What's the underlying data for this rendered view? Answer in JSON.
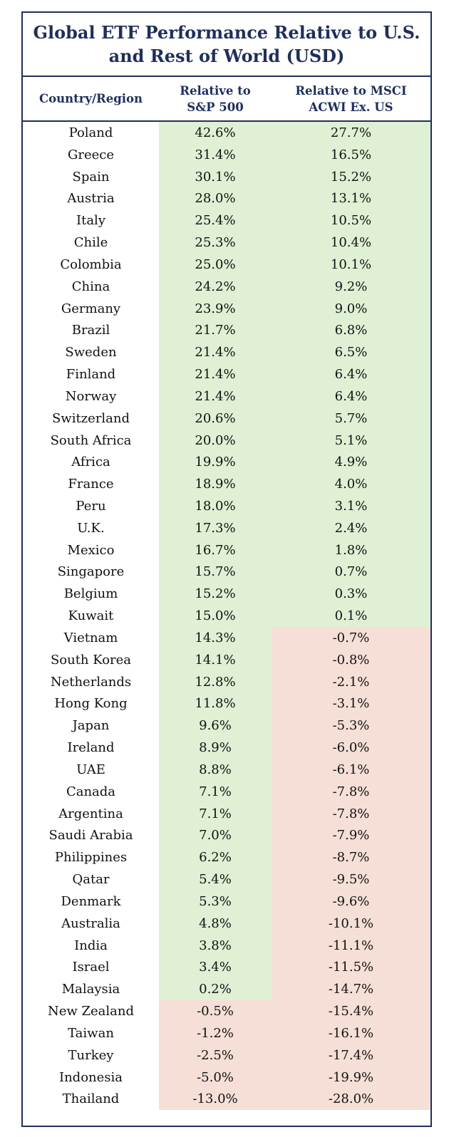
{
  "chart_data": {
    "type": "table",
    "title": "Global ETF Performance Relative to U.S. and Rest of World (USD)",
    "columns": [
      "Country/Region",
      "Relative to\nS&P 500",
      "Relative to MSCI\nACWI Ex. US"
    ],
    "rows": [
      [
        "Poland",
        "42.6%",
        "27.7%"
      ],
      [
        "Greece",
        "31.4%",
        "16.5%"
      ],
      [
        "Spain",
        "30.1%",
        "15.2%"
      ],
      [
        "Austria",
        "28.0%",
        "13.1%"
      ],
      [
        "Italy",
        "25.4%",
        "10.5%"
      ],
      [
        "Chile",
        "25.3%",
        "10.4%"
      ],
      [
        "Colombia",
        "25.0%",
        "10.1%"
      ],
      [
        "China",
        "24.2%",
        "9.2%"
      ],
      [
        "Germany",
        "23.9%",
        "9.0%"
      ],
      [
        "Brazil",
        "21.7%",
        "6.8%"
      ],
      [
        "Sweden",
        "21.4%",
        "6.5%"
      ],
      [
        "Finland",
        "21.4%",
        "6.4%"
      ],
      [
        "Norway",
        "21.4%",
        "6.4%"
      ],
      [
        "Switzerland",
        "20.6%",
        "5.7%"
      ],
      [
        "South Africa",
        "20.0%",
        "5.1%"
      ],
      [
        "Africa",
        "19.9%",
        "4.9%"
      ],
      [
        "France",
        "18.9%",
        "4.0%"
      ],
      [
        "Peru",
        "18.0%",
        "3.1%"
      ],
      [
        "U.K.",
        "17.3%",
        "2.4%"
      ],
      [
        "Mexico",
        "16.7%",
        "1.8%"
      ],
      [
        "Singapore",
        "15.7%",
        "0.7%"
      ],
      [
        "Belgium",
        "15.2%",
        "0.3%"
      ],
      [
        "Kuwait",
        "15.0%",
        "0.1%"
      ],
      [
        "Vietnam",
        "14.3%",
        "-0.7%"
      ],
      [
        "South Korea",
        "14.1%",
        "-0.8%"
      ],
      [
        "Netherlands",
        "12.8%",
        "-2.1%"
      ],
      [
        "Hong Kong",
        "11.8%",
        "-3.1%"
      ],
      [
        "Japan",
        "9.6%",
        "-5.3%"
      ],
      [
        "Ireland",
        "8.9%",
        "-6.0%"
      ],
      [
        "UAE",
        "8.8%",
        "-6.1%"
      ],
      [
        "Canada",
        "7.1%",
        "-7.8%"
      ],
      [
        "Argentina",
        "7.1%",
        "-7.8%"
      ],
      [
        "Saudi Arabia",
        "7.0%",
        "-7.9%"
      ],
      [
        "Philippines",
        "6.2%",
        "-8.7%"
      ],
      [
        "Qatar",
        "5.4%",
        "-9.5%"
      ],
      [
        "Denmark",
        "5.3%",
        "-9.6%"
      ],
      [
        "Australia",
        "4.8%",
        "-10.1%"
      ],
      [
        "India",
        "3.8%",
        "-11.1%"
      ],
      [
        "Israel",
        "3.4%",
        "-11.5%"
      ],
      [
        "Malaysia",
        "0.2%",
        "-14.7%"
      ],
      [
        "New Zealand",
        "-0.5%",
        "-15.4%"
      ],
      [
        "Taiwan",
        "-1.2%",
        "-16.1%"
      ],
      [
        "Turkey",
        "-2.5%",
        "-17.4%"
      ],
      [
        "Indonesia",
        "-5.0%",
        "-19.9%"
      ],
      [
        "Thailand",
        "-13.0%",
        "-28.0%"
      ]
    ],
    "colors": {
      "positive_fill": "#dff0d5",
      "negative_fill": "#f6dfd6",
      "header_text": "#1f2f5c",
      "border": "#1f2f5c"
    }
  }
}
